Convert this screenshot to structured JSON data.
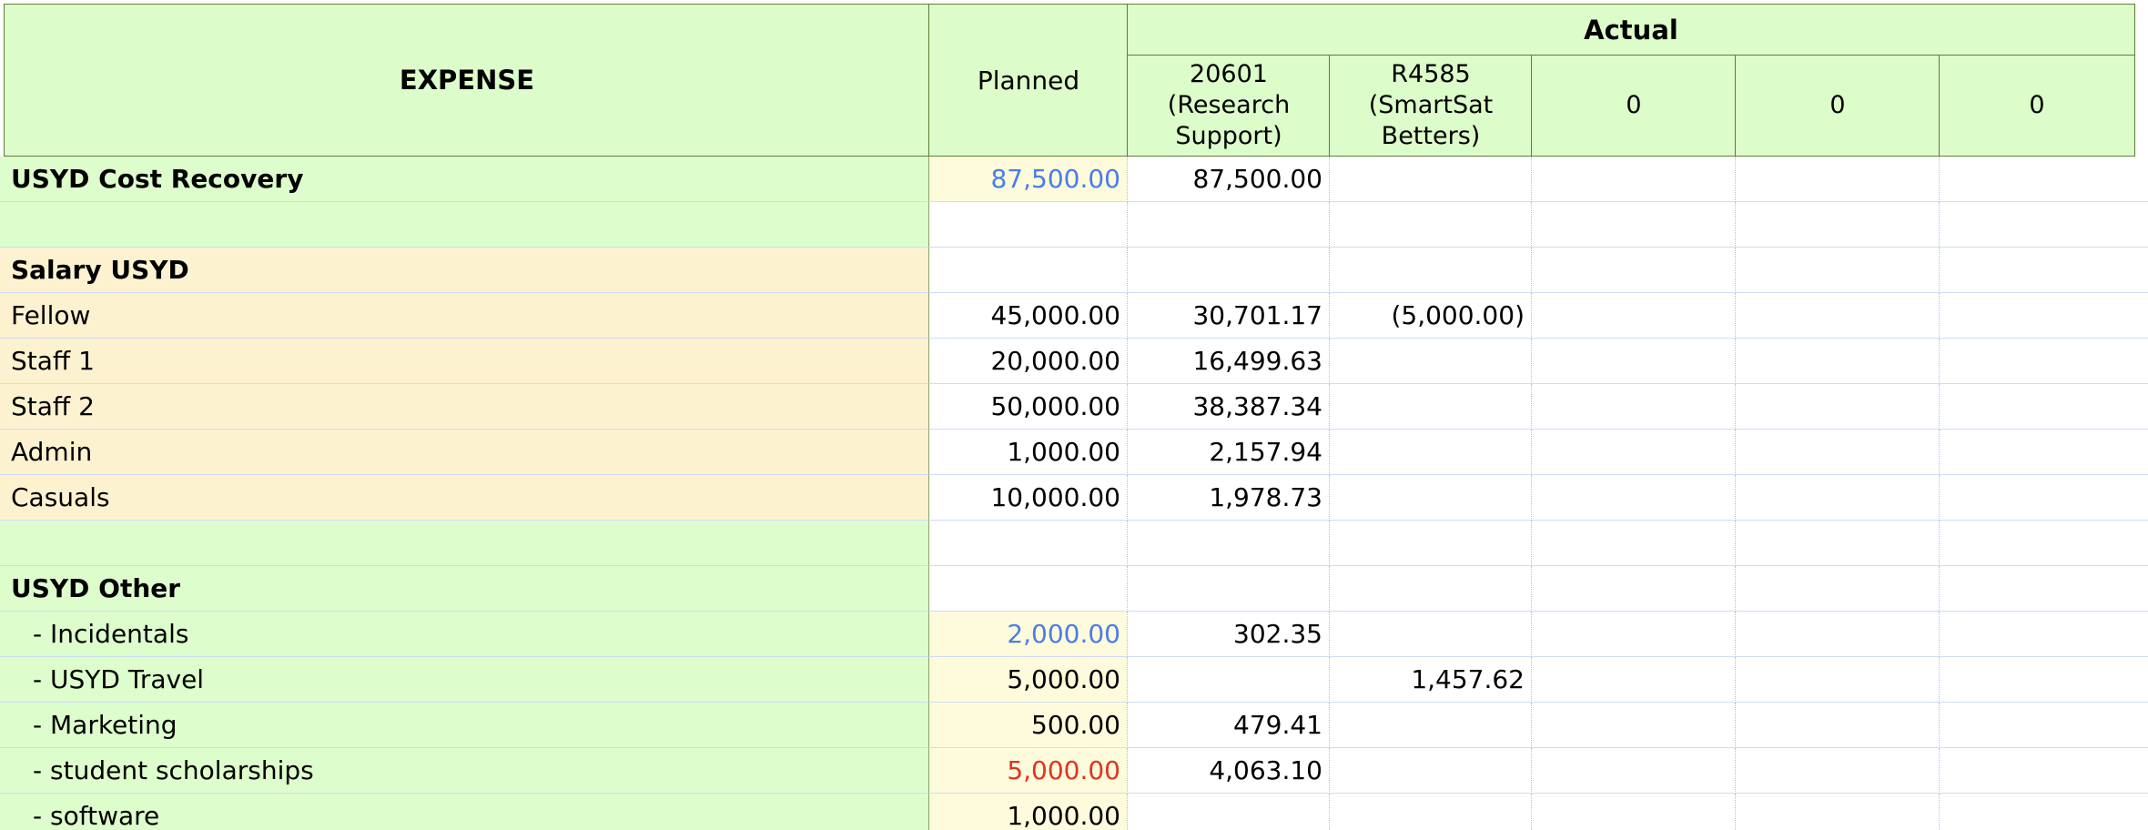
{
  "colors": {
    "header_bg": "#dcfcca",
    "label_green": "#defdcc",
    "label_orange": "#fdf2d0",
    "planned_yellow": "#fefbdc",
    "blue_text": "#4a7de8",
    "red_text": "#e0351f"
  },
  "header": {
    "expense": "EXPENSE",
    "planned": "Planned",
    "actual": "Actual",
    "columns": [
      "20601\n(Research\nSupport)",
      "R4585\n(SmartSat\nBetters)",
      "0",
      "0",
      "0"
    ]
  },
  "rows": [
    {
      "label": "USYD Cost Recovery",
      "style": "bold",
      "bg": "green",
      "planned": "87,500.00",
      "planned_color": "blue",
      "planned_bg": "yellow",
      "actual": [
        "87,500.00",
        "",
        "",
        "",
        ""
      ]
    },
    {
      "label": "",
      "style": "",
      "bg": "green",
      "planned": "",
      "planned_color": "",
      "planned_bg": "",
      "actual": [
        "",
        "",
        "",
        "",
        ""
      ]
    },
    {
      "label": "Salary USYD",
      "style": "bold",
      "bg": "orange",
      "planned": "",
      "planned_color": "",
      "planned_bg": "",
      "actual": [
        "",
        "",
        "",
        "",
        ""
      ]
    },
    {
      "label": "Fellow",
      "style": "",
      "bg": "orange",
      "planned": "45,000.00",
      "planned_color": "",
      "planned_bg": "",
      "actual": [
        "30,701.17",
        "(5,000.00)",
        "",
        "",
        ""
      ]
    },
    {
      "label": "Staff 1",
      "style": "",
      "bg": "orange",
      "planned": "20,000.00",
      "planned_color": "",
      "planned_bg": "",
      "actual": [
        "16,499.63",
        "",
        "",
        "",
        ""
      ]
    },
    {
      "label": "Staff 2",
      "style": "",
      "bg": "orange",
      "planned": "50,000.00",
      "planned_color": "",
      "planned_bg": "",
      "actual": [
        "38,387.34",
        "",
        "",
        "",
        ""
      ]
    },
    {
      "label": "Admin",
      "style": "",
      "bg": "orange",
      "planned": "1,000.00",
      "planned_color": "",
      "planned_bg": "",
      "actual": [
        "2,157.94",
        "",
        "",
        "",
        ""
      ]
    },
    {
      "label": "Casuals",
      "style": "",
      "bg": "orange",
      "planned": "10,000.00",
      "planned_color": "",
      "planned_bg": "",
      "actual": [
        "1,978.73",
        "",
        "",
        "",
        ""
      ]
    },
    {
      "label": "",
      "style": "",
      "bg": "green",
      "planned": "",
      "planned_color": "",
      "planned_bg": "",
      "actual": [
        "",
        "",
        "",
        "",
        ""
      ]
    },
    {
      "label": "USYD Other",
      "style": "bold",
      "bg": "green",
      "planned": "",
      "planned_color": "",
      "planned_bg": "",
      "actual": [
        "",
        "",
        "",
        "",
        ""
      ]
    },
    {
      "label": "- Incidentals",
      "style": "indent",
      "bg": "green",
      "planned": "2,000.00",
      "planned_color": "blue",
      "planned_bg": "yellow",
      "actual": [
        "302.35",
        "",
        "",
        "",
        ""
      ]
    },
    {
      "label": "- USYD Travel",
      "style": "indent",
      "bg": "green",
      "planned": "5,000.00",
      "planned_color": "",
      "planned_bg": "yellow",
      "actual": [
        "",
        "1,457.62",
        "",
        "",
        ""
      ]
    },
    {
      "label": "- Marketing",
      "style": "indent",
      "bg": "green",
      "planned": "500.00",
      "planned_color": "",
      "planned_bg": "yellow",
      "actual": [
        "479.41",
        "",
        "",
        "",
        ""
      ]
    },
    {
      "label": "- student scholarships",
      "style": "indent",
      "bg": "green",
      "planned": "5,000.00",
      "planned_color": "red",
      "planned_bg": "yellow",
      "actual": [
        "4,063.10",
        "",
        "",
        "",
        ""
      ]
    },
    {
      "label": "- software",
      "style": "indent",
      "bg": "green",
      "planned": "1,000.00",
      "planned_color": "",
      "planned_bg": "yellow",
      "actual": [
        "",
        "",
        "",
        "",
        ""
      ]
    }
  ]
}
